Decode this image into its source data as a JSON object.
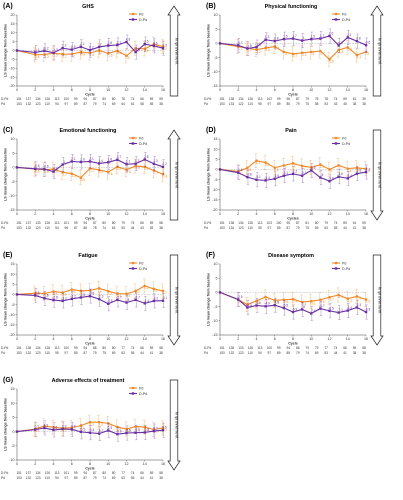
{
  "figure": {
    "improvement_label": "Improvement",
    "series_names": [
      "Pd",
      "D-Pd"
    ],
    "colors": {
      "Pd": "#ef8a2a",
      "D-Pd": "#6a2fa3"
    },
    "n_labels": [
      "D-Pd",
      "Pd"
    ]
  },
  "chart_data": [
    {
      "panel": "(A)",
      "title": "GHS",
      "type": "line",
      "xlabel": "Cycle",
      "ylabel": "LS mean change from baseline",
      "ylim": [
        -20,
        20
      ],
      "xlim": [
        0,
        16
      ],
      "x_ticks": [
        0,
        2,
        4,
        6,
        8,
        10,
        12,
        14,
        16
      ],
      "y_ticks": [
        -20,
        -15,
        -10,
        -5,
        0,
        5,
        10,
        15,
        20
      ],
      "legend": "top-right",
      "arrow": "up",
      "x": [
        2,
        3,
        4,
        5,
        6,
        7,
        8,
        9,
        10,
        11,
        12,
        13,
        14,
        15,
        16
      ],
      "series": [
        {
          "name": "Pd",
          "values": [
            -2.4,
            -2.3,
            -1.5,
            -2.1,
            -2.0,
            -0.9,
            -1.4,
            0.0,
            -1.6,
            -0.2,
            -3.0,
            1.3,
            0.9,
            3.6,
            2.2
          ]
        },
        {
          "name": "D-Pd",
          "values": [
            -1.1,
            -0.2,
            -1.3,
            1.3,
            0.5,
            2.1,
            0.2,
            2.0,
            2.8,
            3.1,
            4.8,
            -0.9,
            3.6,
            2.6,
            1.3
          ]
        }
      ],
      "n_at_risk": {
        "cycles": [
          "1",
          "2",
          "3",
          "4",
          "5",
          "6",
          "7",
          "8",
          "9",
          "10",
          "11",
          "12",
          "13",
          "14",
          "15",
          "16"
        ],
        "D-Pd": [
          "151",
          "137",
          "134",
          "126",
          "113",
          "100",
          "99",
          "94",
          "87",
          "80",
          "80",
          "78",
          "74",
          "66",
          "59",
          "59"
        ],
        "Pd": [
          "153",
          "132",
          "123",
          "110",
          "94",
          "97",
          "89",
          "87",
          "79",
          "74",
          "69",
          "64",
          "61",
          "58",
          "55",
          "38"
        ]
      },
      "stars": []
    },
    {
      "panel": "(B)",
      "title": "Physical functioning",
      "type": "line",
      "xlabel": "Cycle",
      "ylabel": "LS mean change from baseline",
      "ylim": [
        -15,
        10
      ],
      "xlim": [
        0,
        16
      ],
      "x_ticks": [
        0,
        2,
        4,
        6,
        8,
        10,
        12,
        14,
        16
      ],
      "y_ticks": [
        -15,
        -10,
        -5,
        0,
        5,
        10
      ],
      "legend": "top-right",
      "arrow": "up",
      "x": [
        2,
        3,
        4,
        5,
        6,
        7,
        8,
        9,
        10,
        11,
        12,
        13,
        14,
        15,
        16
      ],
      "series": [
        {
          "name": "Pd",
          "values": [
            -1.1,
            -1.7,
            -2.2,
            -1.6,
            -1.1,
            -3.0,
            -3.7,
            -3.3,
            -3.0,
            -2.7,
            -5.6,
            -2.3,
            -1.4,
            -4.1,
            -3.0
          ]
        },
        {
          "name": "D-Pd",
          "values": [
            -0.7,
            -1.8,
            -1.3,
            1.3,
            0.8,
            1.5,
            1.7,
            1.0,
            1.5,
            1.7,
            2.6,
            -0.7,
            2.1,
            0.8,
            -0.6
          ]
        }
      ],
      "n_at_risk": {
        "cycles": [
          "1",
          "2",
          "3",
          "4",
          "5",
          "6",
          "7",
          "8",
          "9",
          "10",
          "11",
          "12",
          "13",
          "14",
          "15",
          "16"
        ],
        "D-Pd": [
          "151",
          "138",
          "134",
          "126",
          "113",
          "102",
          "99",
          "96",
          "87",
          "79",
          "78",
          "78",
          "74",
          "69",
          "61",
          "39"
        ],
        "Pd": [
          "153",
          "133",
          "122",
          "110",
          "95",
          "97",
          "89",
          "85",
          "79",
          "75",
          "58",
          "53",
          "43",
          "45",
          "38",
          "38"
        ]
      },
      "stars": [
        5,
        9,
        11
      ]
    },
    {
      "panel": "(C)",
      "title": "Emotional functioning",
      "type": "line",
      "xlabel": "Cycle",
      "ylabel": "LS mean change from baseline",
      "ylim": [
        -15,
        10
      ],
      "xlim": [
        0,
        16
      ],
      "x_ticks": [
        0,
        2,
        4,
        6,
        8,
        10,
        12,
        14,
        16
      ],
      "y_ticks": [
        -15,
        -10,
        -5,
        0,
        5,
        10
      ],
      "legend": "top-right",
      "arrow": "up",
      "x": [
        2,
        3,
        4,
        5,
        6,
        7,
        8,
        9,
        10,
        11,
        12,
        13,
        14,
        15,
        16
      ],
      "series": [
        {
          "name": "Pd",
          "values": [
            -0.6,
            -0.8,
            -0.6,
            -1.7,
            -2.2,
            -3.6,
            -0.3,
            -0.9,
            -1.6,
            0.2,
            -0.8,
            0.5,
            0.2,
            -1.1,
            -2.4
          ]
        },
        {
          "name": "D-Pd",
          "values": [
            -0.5,
            -0.6,
            -1.5,
            1.0,
            2.1,
            1.9,
            2.1,
            1.4,
            1.8,
            2.7,
            1.1,
            1.3,
            2.8,
            1.3,
            0.2
          ]
        }
      ],
      "n_at_risk": {
        "cycles": [
          "1",
          "2",
          "3",
          "4",
          "5",
          "6",
          "7",
          "8",
          "9",
          "10",
          "11",
          "12",
          "13",
          "14",
          "15",
          "16"
        ],
        "D-Pd": [
          "151",
          "137",
          "133",
          "126",
          "113",
          "101",
          "99",
          "94",
          "87",
          "80",
          "80",
          "79",
          "74",
          "66",
          "59",
          "58"
        ],
        "Pd": [
          "153",
          "132",
          "123",
          "110",
          "94",
          "96",
          "87",
          "86",
          "78",
          "74",
          "63",
          "53",
          "44",
          "43",
          "39",
          "38"
        ]
      },
      "stars": [
        5,
        6,
        8,
        9,
        13
      ]
    },
    {
      "panel": "(D)",
      "title": "Pain",
      "type": "line",
      "xlabel": "Cycles",
      "ylabel": "LS mean change from baseline",
      "ylim": [
        -20,
        15
      ],
      "xlim": [
        0,
        16
      ],
      "x_ticks": [
        0,
        2,
        4,
        6,
        8,
        10,
        12,
        14,
        16
      ],
      "y_ticks": [
        -20,
        -15,
        -10,
        -5,
        0,
        5,
        10,
        15
      ],
      "legend": "top-right",
      "arrow": "down",
      "x": [
        2,
        3,
        4,
        5,
        6,
        7,
        8,
        9,
        10,
        11,
        12,
        13,
        14,
        15,
        16
      ],
      "series": [
        {
          "name": "Pd",
          "values": [
            -1.0,
            0.8,
            4.3,
            3.4,
            0.8,
            2.0,
            3.0,
            1.7,
            1.0,
            2.4,
            0.0,
            2.0,
            0.4,
            0.8,
            0.3
          ]
        },
        {
          "name": "D-Pd",
          "values": [
            -1.6,
            -3.8,
            -5.1,
            -5.4,
            -4.6,
            -3.1,
            -2.2,
            -3.1,
            -0.5,
            -4.0,
            -5.8,
            -3.6,
            -4.4,
            -2.1,
            -1.3
          ]
        }
      ],
      "n_at_risk": {
        "cycles": [
          "1",
          "2",
          "3",
          "4",
          "5",
          "6",
          "7",
          "8",
          "9",
          "10",
          "11",
          "12",
          "13",
          "14",
          "15",
          "16"
        ],
        "D-Pd": [
          "151",
          "138",
          "134",
          "126",
          "113",
          "103",
          "100",
          "95",
          "87",
          "81",
          "80",
          "79",
          "74",
          "69",
          "61",
          "59"
        ],
        "Pd": [
          "153",
          "134",
          "123",
          "110",
          "95",
          "97",
          "89",
          "87",
          "79",
          "75",
          "69",
          "63",
          "55",
          "44",
          "41",
          "38"
        ]
      },
      "stars": [
        5,
        13
      ]
    },
    {
      "panel": "(E)",
      "title": "Fatigue",
      "type": "line",
      "xlabel": "Cycle",
      "ylabel": "LS mean change from baseline",
      "ylim": [
        -20,
        15
      ],
      "xlim": [
        0,
        16
      ],
      "x_ticks": [
        0,
        2,
        4,
        6,
        8,
        10,
        12,
        14,
        16
      ],
      "y_ticks": [
        -20,
        -15,
        -10,
        -5,
        0,
        5,
        10,
        15
      ],
      "legend": "top-right",
      "arrow": "down",
      "x": [
        2,
        3,
        4,
        5,
        6,
        7,
        8,
        9,
        10,
        11,
        12,
        13,
        14,
        15,
        16
      ],
      "series": [
        {
          "name": "Pd",
          "values": [
            0.6,
            0.5,
            1.4,
            0.9,
            2.4,
            1.7,
            2.0,
            3.0,
            1.6,
            0.4,
            0.3,
            1.7,
            4.2,
            2.7,
            1.7
          ]
        },
        {
          "name": "D-Pd",
          "values": [
            -0.5,
            -1.9,
            -2.8,
            -3.2,
            -2.2,
            -1.5,
            -0.8,
            -2.3,
            -4.6,
            -2.7,
            -4.0,
            -2.7,
            -4.4,
            -3.2,
            -3.1
          ]
        }
      ],
      "n_at_risk": {
        "cycles": [
          "1",
          "2",
          "3",
          "4",
          "5",
          "6",
          "7",
          "8",
          "9",
          "10",
          "11",
          "12",
          "13",
          "14",
          "15",
          "16"
        ],
        "D-Pd": [
          "151",
          "138",
          "134",
          "126",
          "113",
          "100",
          "99",
          "94",
          "88",
          "80",
          "80",
          "77",
          "74",
          "66",
          "59",
          "58"
        ],
        "Pd": [
          "153",
          "132",
          "123",
          "110",
          "95",
          "97",
          "89",
          "87",
          "79",
          "75",
          "69",
          "63",
          "55",
          "44",
          "41",
          "38"
        ]
      },
      "stars": [
        12
      ]
    },
    {
      "panel": "(F)",
      "title": "Disease symptom",
      "type": "line",
      "xlabel": "Cycle",
      "ylabel": "LS mean change from baseline",
      "ylim": [
        -15,
        10
      ],
      "xlim": [
        0,
        16
      ],
      "x_ticks": [
        0,
        2,
        4,
        6,
        8,
        10,
        12,
        14,
        16
      ],
      "y_ticks": [
        -15,
        -10,
        -5,
        0,
        5,
        10
      ],
      "legend": "top-right",
      "arrow": "down",
      "x": [
        2,
        3,
        4,
        5,
        6,
        7,
        8,
        9,
        10,
        11,
        12,
        13,
        14,
        15,
        16
      ],
      "series": [
        {
          "name": "Pd",
          "values": [
            -2.6,
            -4.3,
            -3.0,
            -1.6,
            -2.8,
            -2.6,
            -2.4,
            -3.4,
            -3.1,
            -2.6,
            -1.7,
            -0.9,
            -2.2,
            -1.4,
            -2.5
          ]
        },
        {
          "name": "D-Pd",
          "values": [
            -2.5,
            -5.3,
            -4.6,
            -4.9,
            -4.5,
            -5.5,
            -6.9,
            -6.0,
            -7.4,
            -5.7,
            -6.5,
            -7.1,
            -6.4,
            -5.3,
            -6.9
          ]
        }
      ],
      "n_at_risk": {
        "cycles": [
          "1",
          "2",
          "3",
          "4",
          "5",
          "6",
          "7",
          "8",
          "9",
          "10",
          "11",
          "12",
          "13",
          "14",
          "15",
          "16"
        ],
        "D-Pd": [
          "151",
          "136",
          "133",
          "126",
          "113",
          "100",
          "99",
          "94",
          "86",
          "79",
          "79",
          "77",
          "74",
          "66",
          "59",
          "58"
        ],
        "Pd": [
          "153",
          "132",
          "123",
          "110",
          "94",
          "97",
          "89",
          "85",
          "79",
          "74",
          "69",
          "53",
          "44",
          "41",
          "38",
          "38"
        ]
      },
      "stars": [
        3
      ]
    },
    {
      "panel": "(G)",
      "title": "Adverse effects of treatment",
      "type": "line",
      "xlabel": "Cycle",
      "ylabel": "LS mean change from baseline",
      "ylim": [
        -10,
        15
      ],
      "xlim": [
        0,
        16
      ],
      "x_ticks": [
        0,
        2,
        4,
        6,
        8,
        10,
        12,
        14,
        16
      ],
      "y_ticks": [
        -10,
        -5,
        0,
        5,
        10,
        15
      ],
      "legend": "top-right",
      "arrow": "down",
      "x": [
        2,
        3,
        4,
        5,
        6,
        7,
        8,
        9,
        10,
        11,
        12,
        13,
        14,
        15,
        16
      ],
      "series": [
        {
          "name": "Pd",
          "values": [
            0.9,
            2.0,
            1.5,
            1.2,
            1.4,
            2.1,
            3.3,
            3.3,
            2.9,
            1.6,
            0.9,
            1.8,
            1.6,
            0.7,
            1.3
          ]
        },
        {
          "name": "D-Pd",
          "values": [
            0.7,
            1.3,
            0.6,
            0.9,
            0.8,
            -0.1,
            -0.4,
            -0.7,
            0.4,
            -0.9,
            -0.5,
            -0.4,
            -0.3,
            0.2,
            0.5
          ]
        }
      ],
      "n_at_risk": {
        "cycles": [
          "1",
          "2",
          "3",
          "4",
          "5",
          "6",
          "7",
          "8",
          "9",
          "10",
          "11",
          "12",
          "13",
          "14",
          "15",
          "16"
        ],
        "D-Pd": [
          "151",
          "137",
          "134",
          "126",
          "113",
          "101",
          "99",
          "94",
          "87",
          "80",
          "80",
          "77",
          "74",
          "66",
          "59",
          "58"
        ],
        "Pd": [
          "153",
          "132",
          "123",
          "110",
          "94",
          "97",
          "89",
          "87",
          "79",
          "74",
          "69",
          "63",
          "55",
          "44",
          "41",
          "38"
        ]
      },
      "stars": [
        8,
        9,
        10
      ]
    }
  ]
}
